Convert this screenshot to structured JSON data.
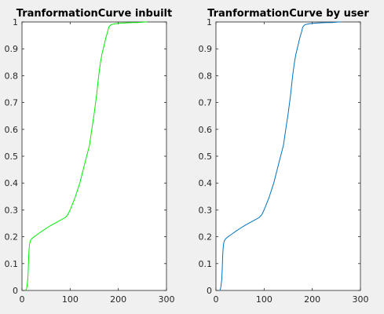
{
  "chart_data": [
    {
      "type": "line",
      "title": "TranformationCurve inbuilt",
      "xlabel": "",
      "ylabel": "",
      "xlim": [
        0,
        300
      ],
      "ylim": [
        0,
        1
      ],
      "xticks": [
        "0",
        "100",
        "200",
        "300"
      ],
      "yticks": [
        "0",
        "0.1",
        "0.2",
        "0.3",
        "0.4",
        "0.5",
        "0.6",
        "0.7",
        "0.8",
        "0.9",
        "1"
      ],
      "grid": false,
      "series": [
        {
          "color": "#00ee00",
          "x": [
            8,
            10,
            12,
            13,
            14,
            15,
            16,
            17,
            18,
            20,
            25,
            30,
            40,
            50,
            60,
            70,
            80,
            90,
            95,
            100,
            110,
            120,
            130,
            140,
            145,
            150,
            155,
            158,
            160,
            163,
            166,
            170,
            174,
            178,
            180,
            182,
            185,
            190,
            195,
            200,
            210,
            220,
            230,
            240,
            250,
            255,
            260
          ],
          "y": [
            0,
            0.01,
            0.04,
            0.08,
            0.13,
            0.16,
            0.175,
            0.182,
            0.187,
            0.192,
            0.2,
            0.206,
            0.219,
            0.231,
            0.242,
            0.252,
            0.262,
            0.272,
            0.282,
            0.3,
            0.345,
            0.4,
            0.47,
            0.54,
            0.6,
            0.66,
            0.73,
            0.78,
            0.81,
            0.85,
            0.88,
            0.91,
            0.94,
            0.965,
            0.98,
            0.985,
            0.99,
            0.992,
            0.994,
            0.995,
            0.996,
            0.997,
            0.998,
            0.998,
            0.999,
            1,
            1
          ]
        }
      ]
    },
    {
      "type": "line",
      "title": "TranformationCurve by user",
      "xlabel": "",
      "ylabel": "",
      "xlim": [
        0,
        300
      ],
      "ylim": [
        0,
        1
      ],
      "xticks": [
        "0",
        "100",
        "200",
        "300"
      ],
      "yticks": [
        "0",
        "0.1",
        "0.2",
        "0.3",
        "0.4",
        "0.5",
        "0.6",
        "0.7",
        "0.8",
        "0.9",
        "1"
      ],
      "grid": false,
      "series": [
        {
          "color": "#0072bd",
          "x": [
            8,
            10,
            12,
            13,
            14,
            15,
            16,
            17,
            18,
            20,
            25,
            30,
            40,
            50,
            60,
            70,
            80,
            90,
            95,
            100,
            110,
            120,
            130,
            140,
            145,
            150,
            155,
            158,
            160,
            163,
            166,
            170,
            174,
            178,
            180,
            182,
            185,
            190,
            195,
            200,
            210,
            220,
            230,
            240,
            250,
            255,
            260
          ],
          "y": [
            0,
            0.01,
            0.04,
            0.08,
            0.13,
            0.16,
            0.175,
            0.182,
            0.187,
            0.192,
            0.2,
            0.206,
            0.219,
            0.231,
            0.242,
            0.252,
            0.262,
            0.272,
            0.282,
            0.3,
            0.345,
            0.4,
            0.47,
            0.54,
            0.6,
            0.66,
            0.73,
            0.78,
            0.81,
            0.85,
            0.88,
            0.91,
            0.94,
            0.965,
            0.98,
            0.985,
            0.99,
            0.992,
            0.994,
            0.995,
            0.996,
            0.997,
            0.998,
            0.998,
            0.999,
            1,
            1
          ]
        }
      ]
    }
  ]
}
